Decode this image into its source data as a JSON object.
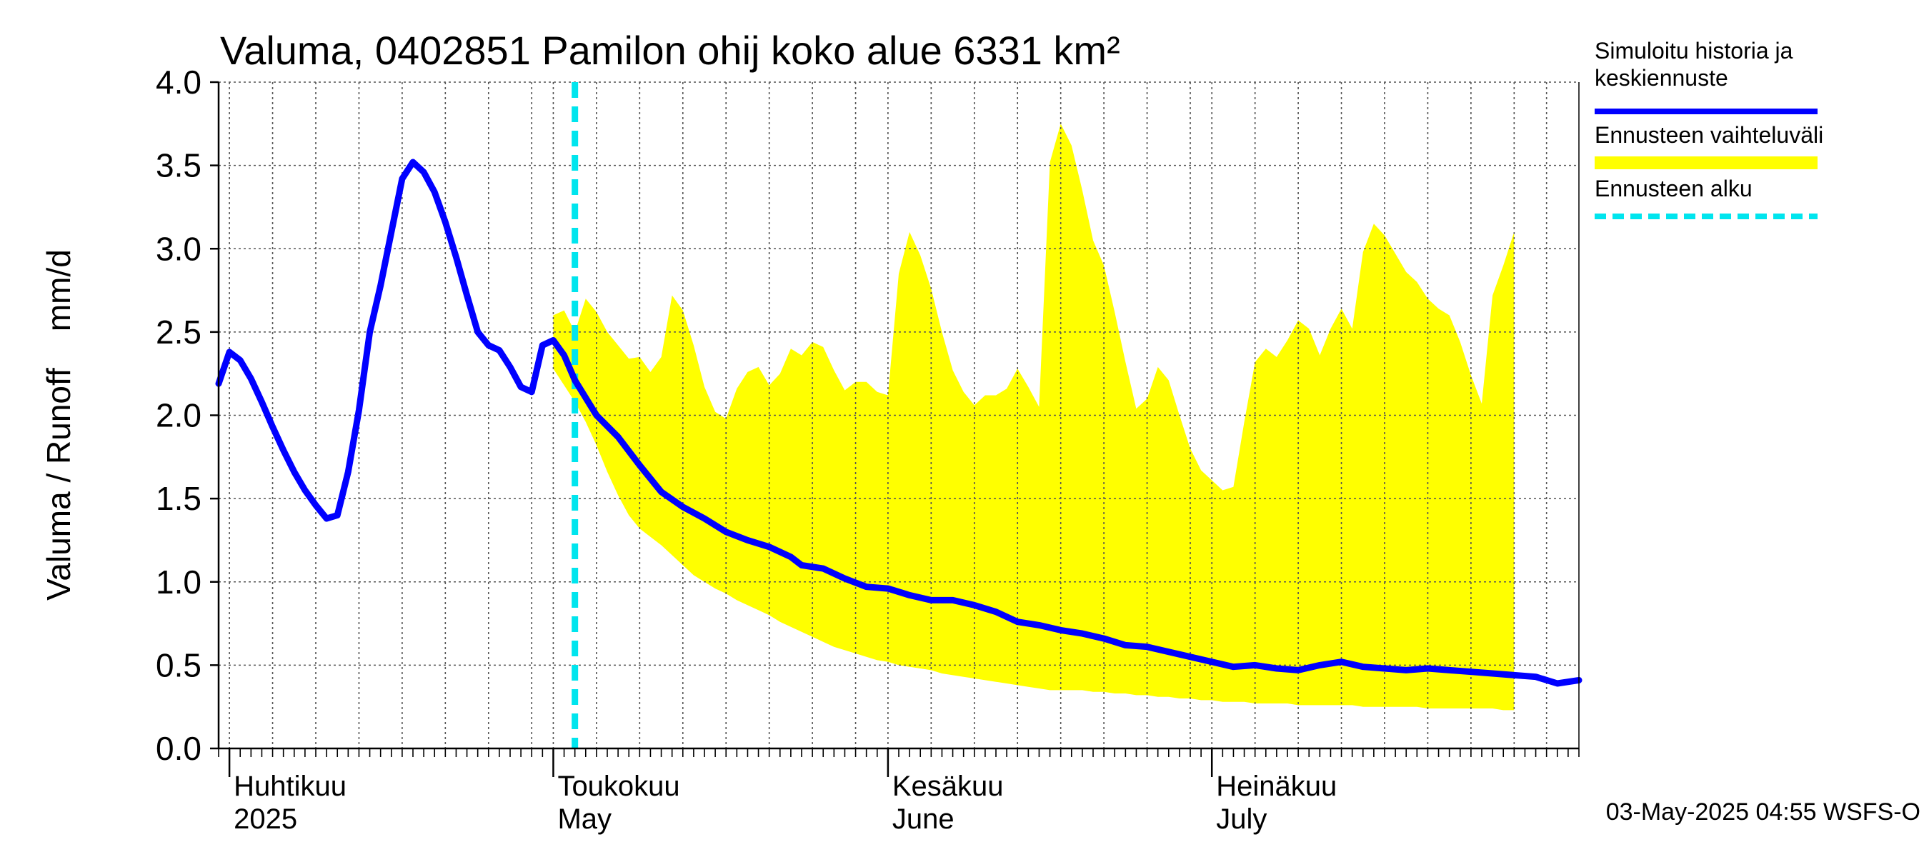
{
  "chart_data": {
    "type": "line",
    "title": "Valuma, 0402851 Pamilon ohij koko alue 6331 km²",
    "ylabel": "Valuma / Runoff    mm/d",
    "ylim": [
      0,
      4.0
    ],
    "yticks": [
      0.0,
      0.5,
      1.0,
      1.5,
      2.0,
      2.5,
      3.0,
      3.5,
      4.0
    ],
    "ytick_labels": [
      "0.0",
      "0.5",
      "1.0",
      "1.5",
      "2.0",
      "2.5",
      "3.0",
      "3.5",
      "4.0"
    ],
    "x_start": "2025-03-31",
    "x_end": "2025-08-04",
    "forecast_start": "2025-05-03",
    "month_labels": [
      {
        "date": "2025-04-01",
        "fi": "Huhtikuu",
        "en": "2025"
      },
      {
        "date": "2025-05-01",
        "fi": "Toukokuu",
        "en": "May"
      },
      {
        "date": "2025-06-01",
        "fi": "Kesäkuu",
        "en": "June"
      },
      {
        "date": "2025-07-01",
        "fi": "Heinäkuu",
        "en": "July"
      }
    ],
    "series": [
      {
        "name": "Simuloitu historia ja keskiennuste",
        "color": "#0000ff",
        "points": [
          [
            "2025-03-31",
            2.19
          ],
          [
            "2025-04-01",
            2.38
          ],
          [
            "2025-04-02",
            2.33
          ],
          [
            "2025-04-03",
            2.22
          ],
          [
            "2025-04-04",
            2.08
          ],
          [
            "2025-04-05",
            1.93
          ],
          [
            "2025-04-06",
            1.79
          ],
          [
            "2025-04-07",
            1.66
          ],
          [
            "2025-04-08",
            1.55
          ],
          [
            "2025-04-09",
            1.46
          ],
          [
            "2025-04-10",
            1.38
          ],
          [
            "2025-04-11",
            1.4
          ],
          [
            "2025-04-12",
            1.66
          ],
          [
            "2025-04-13",
            2.03
          ],
          [
            "2025-04-14",
            2.5
          ],
          [
            "2025-04-15",
            2.78
          ],
          [
            "2025-04-16",
            3.1
          ],
          [
            "2025-04-17",
            3.42
          ],
          [
            "2025-04-18",
            3.52
          ],
          [
            "2025-04-19",
            3.46
          ],
          [
            "2025-04-20",
            3.34
          ],
          [
            "2025-04-21",
            3.16
          ],
          [
            "2025-04-22",
            2.95
          ],
          [
            "2025-04-23",
            2.72
          ],
          [
            "2025-04-24",
            2.5
          ],
          [
            "2025-04-25",
            2.42
          ],
          [
            "2025-04-26",
            2.39
          ],
          [
            "2025-04-27",
            2.29
          ],
          [
            "2025-04-28",
            2.17
          ],
          [
            "2025-04-29",
            2.14
          ],
          [
            "2025-04-30",
            2.42
          ],
          [
            "2025-05-01",
            2.45
          ],
          [
            "2025-05-02",
            2.36
          ],
          [
            "2025-05-03",
            2.21
          ],
          [
            "2025-05-05",
            2.0
          ],
          [
            "2025-05-07",
            1.87
          ],
          [
            "2025-05-09",
            1.7
          ],
          [
            "2025-05-11",
            1.54
          ],
          [
            "2025-05-13",
            1.45
          ],
          [
            "2025-05-15",
            1.38
          ],
          [
            "2025-05-17",
            1.3
          ],
          [
            "2025-05-19",
            1.25
          ],
          [
            "2025-05-21",
            1.21
          ],
          [
            "2025-05-23",
            1.15
          ],
          [
            "2025-05-24",
            1.1
          ],
          [
            "2025-05-26",
            1.08
          ],
          [
            "2025-05-28",
            1.02
          ],
          [
            "2025-05-30",
            0.97
          ],
          [
            "2025-06-01",
            0.96
          ],
          [
            "2025-06-03",
            0.92
          ],
          [
            "2025-06-05",
            0.89
          ],
          [
            "2025-06-07",
            0.89
          ],
          [
            "2025-06-09",
            0.86
          ],
          [
            "2025-06-11",
            0.82
          ],
          [
            "2025-06-13",
            0.76
          ],
          [
            "2025-06-15",
            0.74
          ],
          [
            "2025-06-17",
            0.71
          ],
          [
            "2025-06-19",
            0.69
          ],
          [
            "2025-06-21",
            0.66
          ],
          [
            "2025-06-23",
            0.62
          ],
          [
            "2025-06-25",
            0.61
          ],
          [
            "2025-06-27",
            0.58
          ],
          [
            "2025-06-29",
            0.55
          ],
          [
            "2025-07-01",
            0.52
          ],
          [
            "2025-07-03",
            0.49
          ],
          [
            "2025-07-05",
            0.5
          ],
          [
            "2025-07-07",
            0.48
          ],
          [
            "2025-07-09",
            0.47
          ],
          [
            "2025-07-11",
            0.5
          ],
          [
            "2025-07-13",
            0.52
          ],
          [
            "2025-07-15",
            0.49
          ],
          [
            "2025-07-17",
            0.48
          ],
          [
            "2025-07-19",
            0.47
          ],
          [
            "2025-07-21",
            0.48
          ],
          [
            "2025-07-23",
            0.47
          ],
          [
            "2025-07-25",
            0.46
          ],
          [
            "2025-07-27",
            0.45
          ],
          [
            "2025-07-29",
            0.44
          ],
          [
            "2025-07-31",
            0.43
          ],
          [
            "2025-08-02",
            0.39
          ],
          [
            "2025-08-04",
            0.41
          ]
        ]
      }
    ],
    "band": {
      "name": "Ennusteen vaihteluväli",
      "color": "#ffff00",
      "points": [
        [
          "2025-05-01",
          2.28,
          2.6
        ],
        [
          "2025-05-02",
          2.18,
          2.63
        ],
        [
          "2025-05-03",
          2.08,
          2.5
        ],
        [
          "2025-05-04",
          1.96,
          2.7
        ],
        [
          "2025-05-05",
          1.82,
          2.62
        ],
        [
          "2025-05-06",
          1.66,
          2.5
        ],
        [
          "2025-05-07",
          1.52,
          2.42
        ],
        [
          "2025-05-08",
          1.4,
          2.34
        ],
        [
          "2025-05-09",
          1.32,
          2.35
        ],
        [
          "2025-05-10",
          1.27,
          2.26
        ],
        [
          "2025-05-11",
          1.22,
          2.35
        ],
        [
          "2025-05-12",
          1.16,
          2.72
        ],
        [
          "2025-05-13",
          1.1,
          2.63
        ],
        [
          "2025-05-14",
          1.04,
          2.42
        ],
        [
          "2025-05-15",
          1.0,
          2.17
        ],
        [
          "2025-05-16",
          0.96,
          2.02
        ],
        [
          "2025-05-17",
          0.93,
          1.98
        ],
        [
          "2025-05-18",
          0.89,
          2.16
        ],
        [
          "2025-05-19",
          0.86,
          2.26
        ],
        [
          "2025-05-20",
          0.83,
          2.29
        ],
        [
          "2025-05-21",
          0.8,
          2.18
        ],
        [
          "2025-05-22",
          0.76,
          2.25
        ],
        [
          "2025-05-23",
          0.73,
          2.4
        ],
        [
          "2025-05-24",
          0.7,
          2.36
        ],
        [
          "2025-05-25",
          0.67,
          2.44
        ],
        [
          "2025-05-26",
          0.64,
          2.41
        ],
        [
          "2025-05-27",
          0.61,
          2.27
        ],
        [
          "2025-05-28",
          0.59,
          2.15
        ],
        [
          "2025-05-29",
          0.57,
          2.2
        ],
        [
          "2025-05-30",
          0.55,
          2.2
        ],
        [
          "2025-05-31",
          0.53,
          2.14
        ],
        [
          "2025-06-01",
          0.52,
          2.12
        ],
        [
          "2025-06-02",
          0.5,
          2.85
        ],
        [
          "2025-06-03",
          0.49,
          3.1
        ],
        [
          "2025-06-04",
          0.48,
          2.96
        ],
        [
          "2025-06-05",
          0.47,
          2.76
        ],
        [
          "2025-06-06",
          0.45,
          2.5
        ],
        [
          "2025-06-07",
          0.44,
          2.27
        ],
        [
          "2025-06-08",
          0.43,
          2.14
        ],
        [
          "2025-06-09",
          0.42,
          2.06
        ],
        [
          "2025-06-10",
          0.41,
          2.12
        ],
        [
          "2025-06-11",
          0.4,
          2.12
        ],
        [
          "2025-06-12",
          0.39,
          2.16
        ],
        [
          "2025-06-13",
          0.38,
          2.28
        ],
        [
          "2025-06-14",
          0.37,
          2.17
        ],
        [
          "2025-06-15",
          0.36,
          2.05
        ],
        [
          "2025-06-16",
          0.35,
          3.52
        ],
        [
          "2025-06-17",
          0.35,
          3.75
        ],
        [
          "2025-06-18",
          0.35,
          3.62
        ],
        [
          "2025-06-19",
          0.35,
          3.35
        ],
        [
          "2025-06-20",
          0.34,
          3.05
        ],
        [
          "2025-06-21",
          0.34,
          2.9
        ],
        [
          "2025-06-22",
          0.33,
          2.62
        ],
        [
          "2025-06-23",
          0.33,
          2.32
        ],
        [
          "2025-06-24",
          0.32,
          2.04
        ],
        [
          "2025-06-25",
          0.32,
          2.1
        ],
        [
          "2025-06-26",
          0.31,
          2.29
        ],
        [
          "2025-06-27",
          0.31,
          2.21
        ],
        [
          "2025-06-28",
          0.3,
          2.0
        ],
        [
          "2025-06-29",
          0.3,
          1.8
        ],
        [
          "2025-06-30",
          0.29,
          1.67
        ],
        [
          "2025-07-01",
          0.29,
          1.61
        ],
        [
          "2025-07-02",
          0.28,
          1.55
        ],
        [
          "2025-07-03",
          0.28,
          1.57
        ],
        [
          "2025-07-04",
          0.28,
          1.96
        ],
        [
          "2025-07-05",
          0.27,
          2.32
        ],
        [
          "2025-07-06",
          0.27,
          2.4
        ],
        [
          "2025-07-07",
          0.27,
          2.35
        ],
        [
          "2025-07-08",
          0.27,
          2.45
        ],
        [
          "2025-07-09",
          0.26,
          2.57
        ],
        [
          "2025-07-10",
          0.26,
          2.52
        ],
        [
          "2025-07-11",
          0.26,
          2.36
        ],
        [
          "2025-07-12",
          0.26,
          2.52
        ],
        [
          "2025-07-13",
          0.26,
          2.64
        ],
        [
          "2025-07-14",
          0.26,
          2.52
        ],
        [
          "2025-07-15",
          0.25,
          2.98
        ],
        [
          "2025-07-16",
          0.25,
          3.15
        ],
        [
          "2025-07-17",
          0.25,
          3.08
        ],
        [
          "2025-07-18",
          0.25,
          2.97
        ],
        [
          "2025-07-19",
          0.25,
          2.86
        ],
        [
          "2025-07-20",
          0.25,
          2.8
        ],
        [
          "2025-07-21",
          0.24,
          2.7
        ],
        [
          "2025-07-22",
          0.24,
          2.64
        ],
        [
          "2025-07-23",
          0.24,
          2.6
        ],
        [
          "2025-07-24",
          0.24,
          2.44
        ],
        [
          "2025-07-25",
          0.24,
          2.24
        ],
        [
          "2025-07-26",
          0.24,
          2.07
        ],
        [
          "2025-07-27",
          0.24,
          2.72
        ],
        [
          "2025-07-28",
          0.23,
          2.9
        ],
        [
          "2025-07-29",
          0.23,
          3.1
        ]
      ]
    },
    "legend": {
      "placement": "right",
      "items": [
        {
          "label": "Simuloitu historia ja keskiennuste",
          "lines": [
            "Simuloitu historia ja",
            "keskiennuste"
          ],
          "color": "#0000ff",
          "style": "solid"
        },
        {
          "label": "Ennusteen vaihteluväli",
          "lines": [
            "Ennusteen vaihteluväli"
          ],
          "color": "#ffff00",
          "style": "band"
        },
        {
          "label": "Ennusteen alku",
          "lines": [
            "Ennusteen alku"
          ],
          "color": "#00e5ee",
          "style": "dashed"
        }
      ]
    },
    "footer": "03-May-2025 04:55 WSFS-O",
    "grid": true
  }
}
